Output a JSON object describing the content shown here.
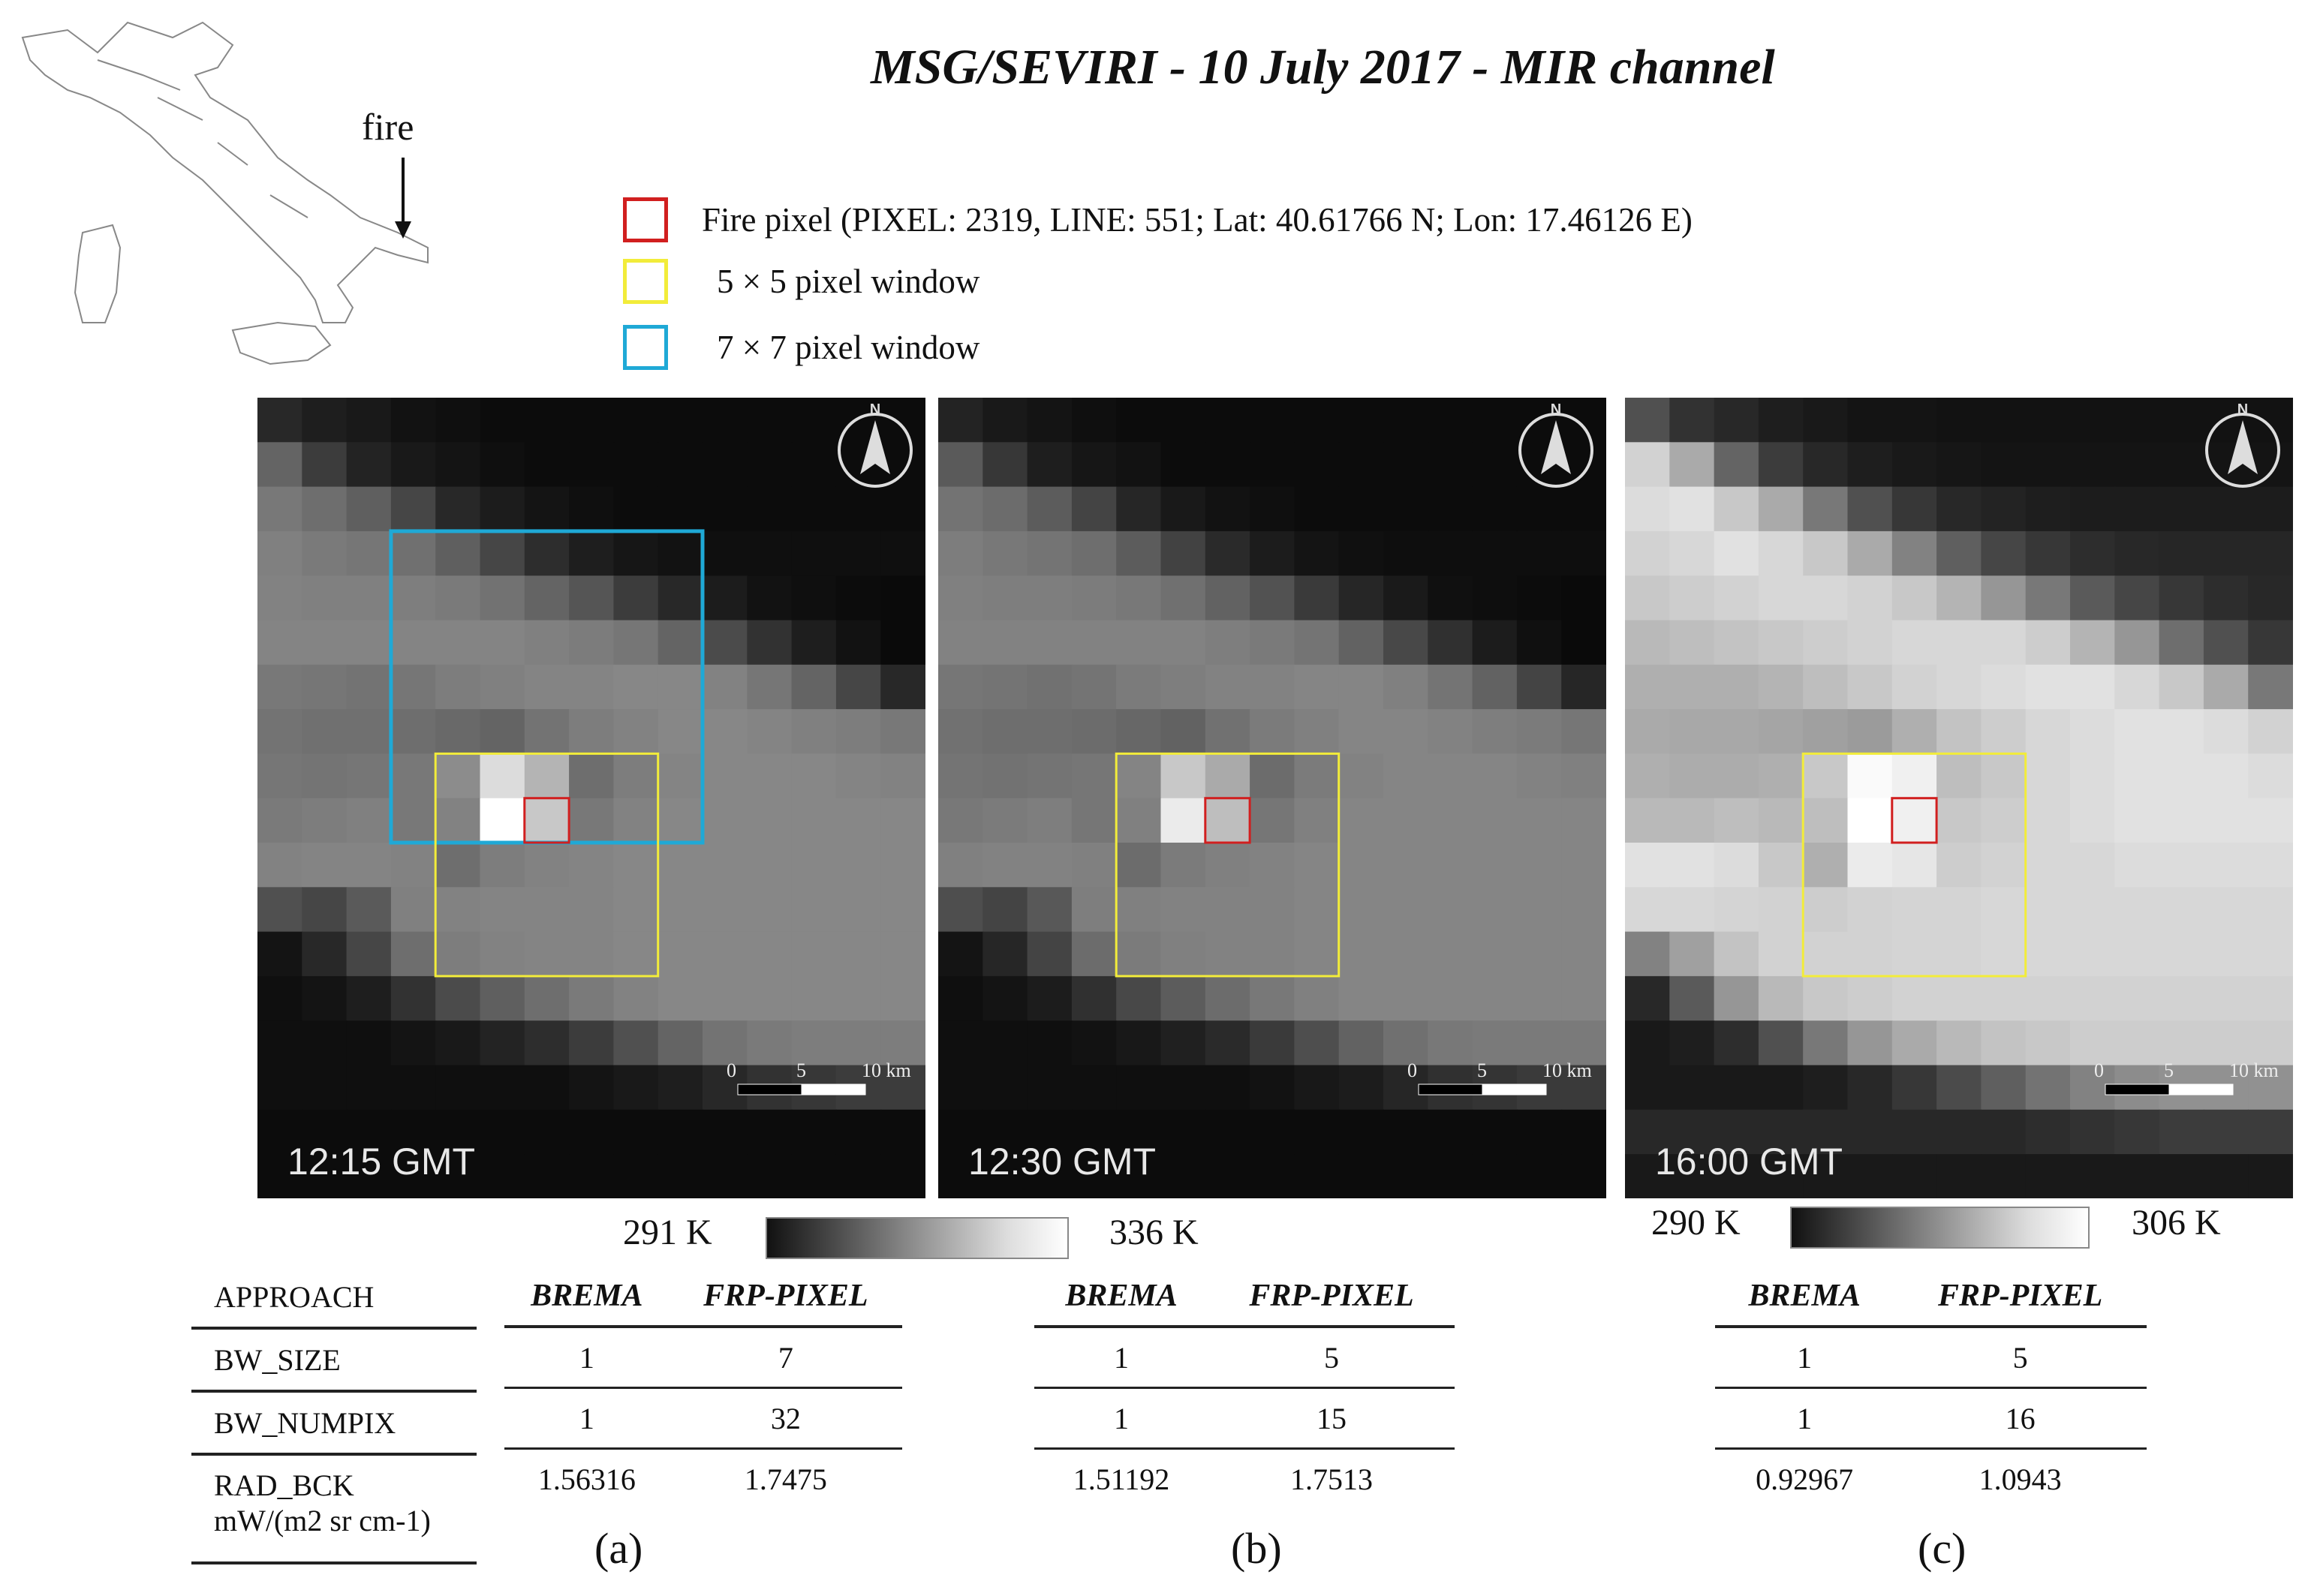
{
  "title": "MSG/SEVIRI - 10 July 2017 - MIR channel",
  "map": {
    "fire_label": "fire"
  },
  "legend": [
    {
      "color": "#d11f1f",
      "text": "Fire pixel (PIXEL: 2319, LINE: 551; Lat: 40.61766 N; Lon: 17.46126 E)"
    },
    {
      "color": "#f2ec3a",
      "text": "5 × 5 pixel window"
    },
    {
      "color": "#1fa9d6",
      "text": "7 × 7 pixel window"
    }
  ],
  "panels": [
    {
      "time": "12:15 GMT",
      "subfig": "(a)",
      "window": "7x7"
    },
    {
      "time": "12:30 GMT",
      "subfig": "(b)",
      "window": "5x5"
    },
    {
      "time": "16:00 GMT",
      "subfig": "(c)",
      "window": "5x5"
    }
  ],
  "scalebar": {
    "t0": "0",
    "t1": "5",
    "t2": "10 km"
  },
  "colorbars": [
    {
      "min": "291 K",
      "max": "336 K"
    },
    {
      "min": "290 K",
      "max": "306 K"
    }
  ],
  "approach_table": {
    "header": "APPROACH",
    "rows": [
      "BW_SIZE",
      "BW_NUMPIX"
    ],
    "rad_label_1": "RAD_BCK",
    "rad_label_2": "mW/(m2 sr cm-1)"
  },
  "results": [
    {
      "col1": "BREMA",
      "col2": "FRP-PIXEL",
      "bw_size": [
        "1",
        "7"
      ],
      "bw_numpix": [
        "1",
        "32"
      ],
      "rad_bck": [
        "1.56316",
        "1.7475"
      ]
    },
    {
      "col1": "BREMA",
      "col2": "FRP-PIXEL",
      "bw_size": [
        "1",
        "5"
      ],
      "bw_numpix": [
        "1",
        "15"
      ],
      "rad_bck": [
        "1.51192",
        "1.7513"
      ]
    },
    {
      "col1": "BREMA",
      "col2": "FRP-PIXEL",
      "bw_size": [
        "1",
        "5"
      ],
      "bw_numpix": [
        "1",
        "16"
      ],
      "rad_bck": [
        "0.92967",
        "1.0943"
      ]
    }
  ],
  "grid_values": [
    [
      [
        40,
        30,
        25,
        18,
        15,
        12,
        12,
        12,
        12,
        12,
        12,
        12,
        12,
        12,
        12
      ],
      [
        100,
        60,
        35,
        25,
        20,
        15,
        12,
        12,
        12,
        12,
        12,
        12,
        12,
        12,
        12
      ],
      [
        120,
        110,
        95,
        70,
        40,
        28,
        20,
        15,
        12,
        12,
        12,
        12,
        12,
        12,
        12
      ],
      [
        128,
        122,
        118,
        112,
        95,
        70,
        45,
        30,
        22,
        18,
        15,
        15,
        15,
        15,
        15
      ],
      [
        130,
        128,
        128,
        126,
        122,
        114,
        100,
        85,
        60,
        40,
        28,
        18,
        15,
        12,
        10
      ],
      [
        132,
        132,
        132,
        132,
        132,
        132,
        128,
        124,
        118,
        100,
        75,
        50,
        30,
        18,
        10
      ],
      [
        120,
        118,
        115,
        118,
        125,
        128,
        132,
        132,
        135,
        135,
        130,
        118,
        100,
        70,
        40
      ],
      [
        115,
        112,
        112,
        110,
        105,
        100,
        115,
        125,
        130,
        135,
        135,
        132,
        128,
        125,
        120
      ],
      [
        118,
        116,
        118,
        120,
        140,
        220,
        180,
        110,
        125,
        132,
        135,
        135,
        135,
        132,
        130
      ],
      [
        122,
        125,
        128,
        120,
        130,
        255,
        200,
        120,
        130,
        135,
        135,
        135,
        135,
        135,
        135
      ],
      [
        130,
        132,
        132,
        130,
        110,
        125,
        130,
        132,
        135,
        135,
        135,
        135,
        135,
        135,
        135
      ],
      [
        80,
        70,
        90,
        128,
        130,
        132,
        132,
        132,
        135,
        135,
        135,
        135,
        135,
        135,
        135
      ],
      [
        20,
        40,
        70,
        110,
        125,
        130,
        132,
        132,
        135,
        135,
        135,
        135,
        135,
        135,
        135
      ],
      [
        15,
        20,
        30,
        50,
        75,
        95,
        110,
        122,
        130,
        135,
        135,
        135,
        135,
        135,
        135
      ],
      [
        15,
        15,
        15,
        20,
        25,
        35,
        45,
        60,
        80,
        100,
        115,
        122,
        125,
        125,
        125
      ],
      [
        15,
        15,
        15,
        15,
        15,
        15,
        15,
        20,
        25,
        30,
        40,
        50,
        55,
        60,
        60
      ],
      [
        12,
        12,
        12,
        12,
        12,
        12,
        12,
        12,
        12,
        12,
        12,
        12,
        12,
        12,
        12
      ],
      [
        12,
        12,
        12,
        12,
        12,
        12,
        12,
        12,
        12,
        12,
        12,
        12,
        12,
        12,
        12
      ]
    ],
    [
      [
        35,
        25,
        20,
        15,
        12,
        12,
        12,
        12,
        12,
        12,
        12,
        12,
        12,
        12,
        12
      ],
      [
        90,
        55,
        30,
        22,
        18,
        12,
        12,
        12,
        12,
        12,
        12,
        12,
        12,
        12,
        12
      ],
      [
        115,
        108,
        92,
        68,
        38,
        25,
        18,
        15,
        12,
        12,
        12,
        12,
        12,
        12,
        12
      ],
      [
        125,
        120,
        116,
        110,
        92,
        66,
        42,
        28,
        20,
        16,
        14,
        14,
        14,
        14,
        14
      ],
      [
        128,
        126,
        126,
        124,
        120,
        112,
        98,
        82,
        58,
        38,
        26,
        16,
        14,
        12,
        10
      ],
      [
        130,
        130,
        130,
        130,
        130,
        130,
        126,
        122,
        116,
        98,
        72,
        48,
        28,
        16,
        10
      ],
      [
        118,
        116,
        113,
        116,
        123,
        126,
        130,
        130,
        133,
        133,
        128,
        116,
        98,
        68,
        38
      ],
      [
        113,
        110,
        110,
        108,
        103,
        98,
        113,
        123,
        128,
        133,
        133,
        130,
        126,
        123,
        118
      ],
      [
        116,
        114,
        116,
        118,
        132,
        200,
        170,
        108,
        123,
        130,
        133,
        133,
        133,
        130,
        128
      ],
      [
        120,
        123,
        126,
        118,
        128,
        235,
        190,
        118,
        128,
        133,
        133,
        133,
        133,
        133,
        133
      ],
      [
        128,
        130,
        130,
        128,
        108,
        123,
        128,
        130,
        133,
        133,
        133,
        133,
        133,
        133,
        133
      ],
      [
        78,
        68,
        88,
        126,
        128,
        130,
        130,
        130,
        133,
        133,
        133,
        133,
        133,
        133,
        133
      ],
      [
        20,
        38,
        68,
        108,
        123,
        128,
        130,
        130,
        133,
        133,
        133,
        133,
        133,
        133,
        133
      ],
      [
        15,
        20,
        28,
        48,
        72,
        92,
        108,
        120,
        128,
        133,
        133,
        133,
        133,
        133,
        133
      ],
      [
        15,
        15,
        15,
        18,
        24,
        32,
        42,
        58,
        78,
        98,
        112,
        120,
        122,
        122,
        122
      ],
      [
        15,
        15,
        15,
        15,
        15,
        15,
        15,
        18,
        24,
        28,
        38,
        48,
        52,
        58,
        58
      ],
      [
        12,
        12,
        12,
        12,
        12,
        12,
        12,
        12,
        12,
        12,
        12,
        12,
        12,
        12,
        12
      ],
      [
        12,
        12,
        12,
        12,
        12,
        12,
        12,
        12,
        12,
        12,
        12,
        12,
        12,
        12,
        12
      ]
    ],
    [
      [
        80,
        50,
        40,
        30,
        25,
        20,
        20,
        18,
        18,
        18,
        18,
        18,
        18,
        18,
        18
      ],
      [
        210,
        170,
        100,
        60,
        40,
        30,
        25,
        22,
        20,
        20,
        20,
        20,
        20,
        20,
        20
      ],
      [
        220,
        225,
        200,
        170,
        120,
        80,
        55,
        40,
        35,
        30,
        28,
        28,
        28,
        28,
        28
      ],
      [
        210,
        215,
        225,
        215,
        200,
        170,
        130,
        95,
        70,
        55,
        45,
        40,
        38,
        38,
        38
      ],
      [
        200,
        205,
        210,
        215,
        215,
        210,
        200,
        180,
        150,
        120,
        90,
        70,
        55,
        45,
        40
      ],
      [
        185,
        190,
        195,
        200,
        205,
        210,
        215,
        215,
        215,
        205,
        180,
        150,
        110,
        80,
        55
      ],
      [
        175,
        175,
        175,
        180,
        190,
        200,
        210,
        215,
        220,
        225,
        225,
        215,
        200,
        170,
        120
      ],
      [
        170,
        168,
        168,
        165,
        160,
        155,
        175,
        195,
        205,
        215,
        220,
        225,
        225,
        220,
        210
      ],
      [
        175,
        172,
        172,
        175,
        200,
        250,
        240,
        190,
        200,
        215,
        220,
        225,
        225,
        225,
        220
      ],
      [
        185,
        185,
        190,
        185,
        190,
        255,
        240,
        200,
        205,
        215,
        220,
        225,
        225,
        225,
        225
      ],
      [
        225,
        225,
        220,
        200,
        175,
        235,
        230,
        205,
        210,
        215,
        215,
        220,
        220,
        220,
        220
      ],
      [
        215,
        215,
        212,
        210,
        205,
        210,
        212,
        212,
        215,
        215,
        215,
        215,
        215,
        215,
        215
      ],
      [
        130,
        160,
        195,
        210,
        210,
        210,
        212,
        212,
        215,
        215,
        215,
        215,
        215,
        215,
        215
      ],
      [
        40,
        90,
        150,
        185,
        200,
        205,
        210,
        210,
        210,
        210,
        210,
        210,
        210,
        210,
        210
      ],
      [
        25,
        30,
        45,
        80,
        120,
        150,
        170,
        185,
        195,
        200,
        205,
        205,
        205,
        205,
        205
      ],
      [
        25,
        25,
        25,
        25,
        30,
        40,
        55,
        75,
        95,
        115,
        130,
        140,
        145,
        145,
        145
      ],
      [
        40,
        40,
        40,
        40,
        40,
        40,
        40,
        40,
        40,
        45,
        50,
        55,
        60,
        60,
        60
      ],
      [
        25,
        25,
        25,
        25,
        25,
        25,
        25,
        25,
        25,
        25,
        25,
        25,
        25,
        25,
        25
      ]
    ]
  ]
}
